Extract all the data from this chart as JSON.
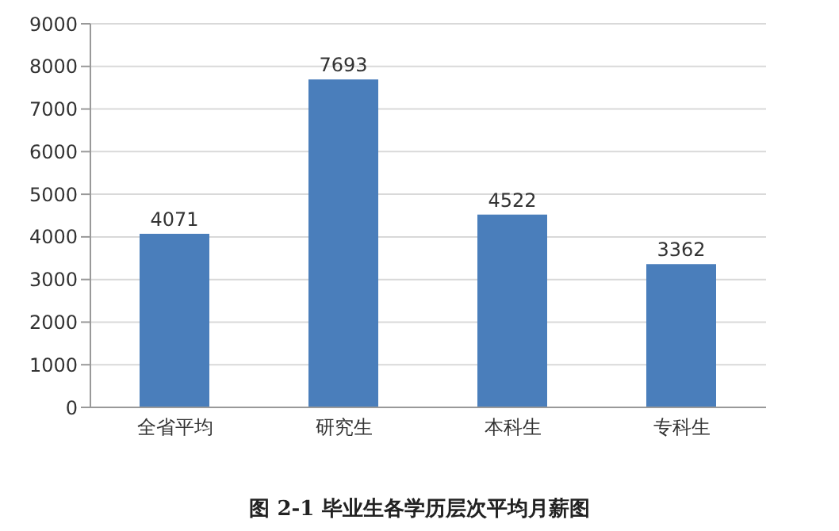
{
  "chart_data": {
    "type": "bar",
    "title": "图 2-1  毕业生各学历层次平均月薪图",
    "categories": [
      "全省平均",
      "研究生",
      "本科生",
      "专科生"
    ],
    "values": [
      4071,
      7693,
      4522,
      3362
    ],
    "color": "#4a7ebb",
    "ylim": [
      0,
      9000
    ],
    "yticks": [
      0,
      1000,
      2000,
      3000,
      4000,
      5000,
      6000,
      7000,
      8000,
      9000
    ],
    "grid": "y",
    "data_labels": true,
    "legend": false
  }
}
